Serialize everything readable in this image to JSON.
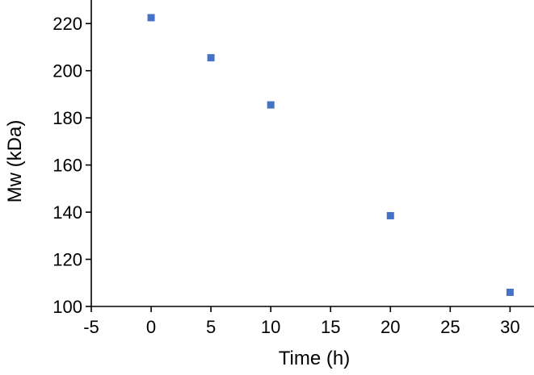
{
  "chart_data": {
    "type": "scatter",
    "title": "",
    "xlabel": "Time (h)",
    "ylabel": "Mw (kDa)",
    "xlim": [
      -5,
      32
    ],
    "ylim": [
      100,
      230
    ],
    "xticks": [
      -5,
      0,
      5,
      10,
      15,
      20,
      25,
      30
    ],
    "yticks": [
      100,
      120,
      140,
      160,
      180,
      200,
      220
    ],
    "grid": false,
    "legend": "none",
    "series": [
      {
        "color": "#4472C4",
        "marker": "square",
        "points": [
          {
            "x": 0,
            "y": 222.5
          },
          {
            "x": 5,
            "y": 205.5
          },
          {
            "x": 10,
            "y": 185.5
          },
          {
            "x": 20,
            "y": 138.5
          },
          {
            "x": 30,
            "y": 106
          }
        ]
      }
    ]
  }
}
